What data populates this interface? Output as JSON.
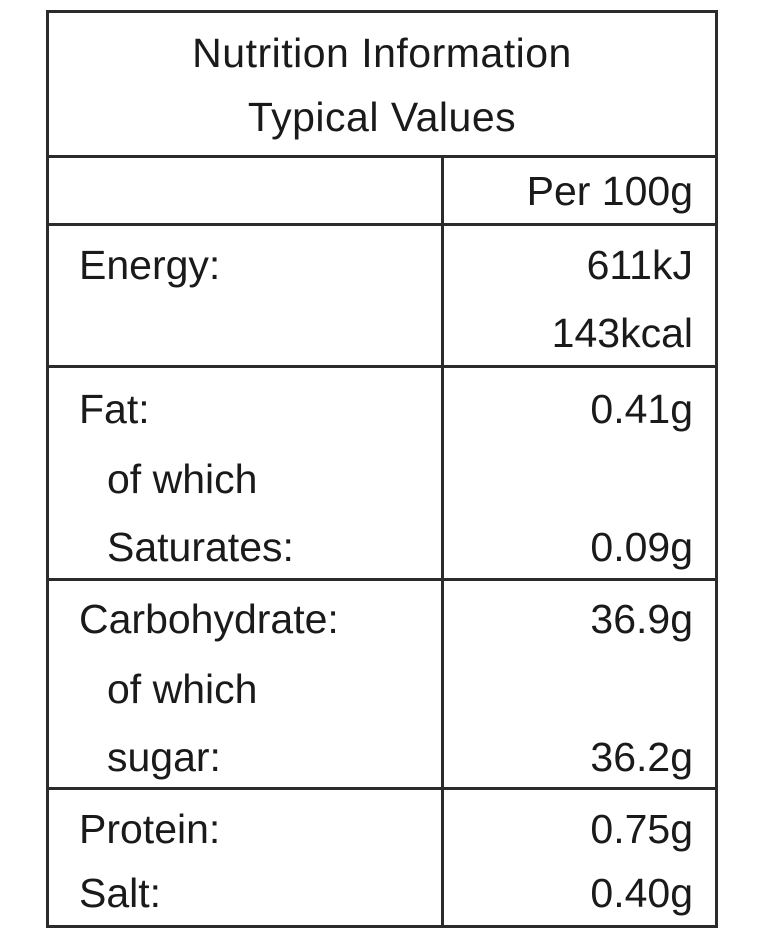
{
  "header": {
    "title": "Nutrition Information",
    "subtitle": "Typical Values"
  },
  "column_header": "Per 100g",
  "rows": {
    "energy": {
      "label": "Energy:",
      "value_kj": "611kJ",
      "value_kcal": "143kcal"
    },
    "fat": {
      "label": "Fat:",
      "value": "0.41g",
      "of_which": "of which",
      "sub_label": "Saturates:",
      "sub_value": "0.09g"
    },
    "carbohydrate": {
      "label": "Carbohydrate:",
      "value": "36.9g",
      "of_which": "of which",
      "sub_label": "sugar:",
      "sub_value": "36.2g"
    },
    "protein": {
      "label": "Protein:",
      "value": "0.75g"
    },
    "salt": {
      "label": "Salt:",
      "value": "0.40g"
    }
  }
}
